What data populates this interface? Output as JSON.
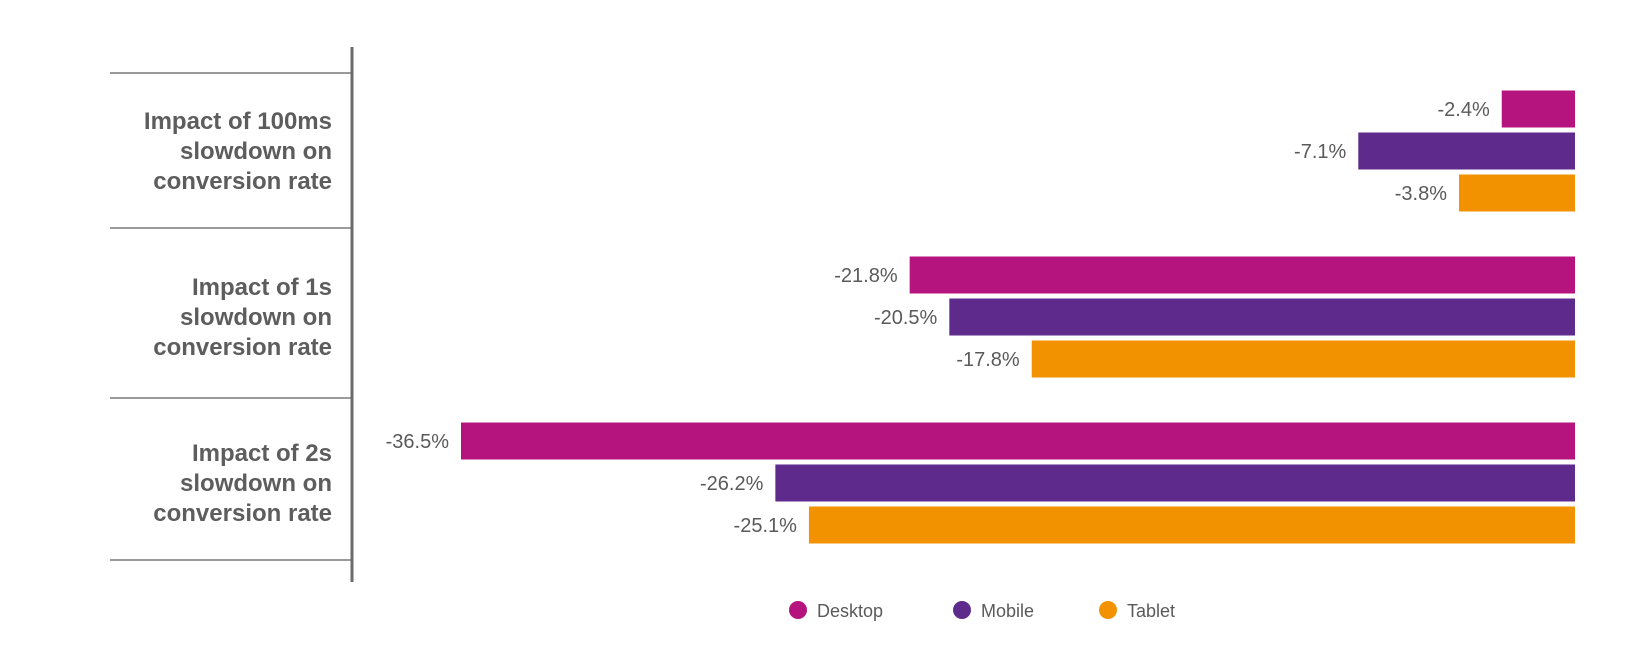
{
  "chart_data": {
    "type": "bar",
    "orientation": "horizontal",
    "categories": [
      [
        "Impact of 100ms",
        "slowdown on",
        "conversion rate"
      ],
      [
        "Impact of 1s",
        "slowdown on",
        "conversion rate"
      ],
      [
        "Impact of 2s",
        "slowdown on",
        "conversion rate"
      ]
    ],
    "series": [
      {
        "name": "Desktop",
        "color": "#b5147e",
        "values": [
          -2.4,
          -21.8,
          -36.5
        ],
        "labels": [
          "-2.4%",
          "-21.8%",
          "-36.5%"
        ]
      },
      {
        "name": "Mobile",
        "color": "#5e2a8c",
        "values": [
          -7.1,
          -20.5,
          -26.2
        ],
        "labels": [
          "-7.1%",
          "-20.5%",
          "-26.2%"
        ]
      },
      {
        "name": "Tablet",
        "color": "#f39200",
        "values": [
          -3.8,
          -17.8,
          -25.1
        ],
        "labels": [
          "-3.8%",
          "-17.8%",
          "-25.1%"
        ]
      }
    ],
    "xlim": [
      -36.5,
      0
    ],
    "unit": "%",
    "grid": false,
    "legend": {
      "position": "bottom-center",
      "items": [
        "Desktop",
        "Mobile",
        "Tablet"
      ]
    }
  }
}
